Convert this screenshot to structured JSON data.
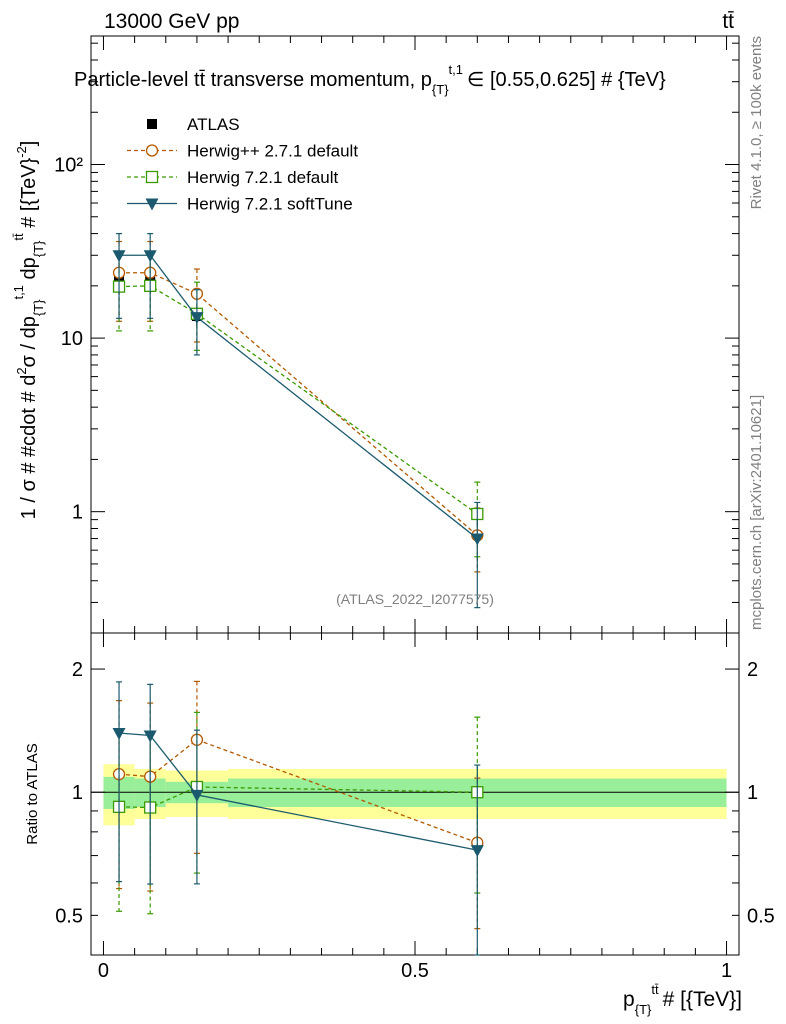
{
  "header": {
    "energy_label": "13000 GeV pp",
    "process_label": "tt̄"
  },
  "chart_data": {
    "type": "line",
    "title": "Particle-level tt̄ transverse momentum, p_{T}^{t,1} ∈ [0.55,0.625] # {TeV}",
    "title_main": "Particle-level tt̄ transverse momentum, p",
    "title_sub": "{T}",
    "title_sup": "t,1",
    "title_tail": "∈ [0.55,0.625] # {TeV}",
    "xlabel": "p_{T}^{tt̄} # [{TeV}]",
    "xlabel_main": "p",
    "xlabel_sub": "{T}",
    "xlabel_sup": "tt̄",
    "xlabel_tail": "# [{TeV}]",
    "ylabel": "1 / σ # #cdot # d²σ / dp_{T}^{t,1} dp_{T}^{tt̄} # [{TeV}⁻²]",
    "ylabel_main": "1 / σ # #cdot # d",
    "ylabel_sup1": "2",
    "ylabel_mid": "σ / dp",
    "ylabel_sub1": "{T}",
    "ylabel_sup2": "t,1",
    "ylabel_mid2": " dp",
    "ylabel_sub2": "{T}",
    "ylabel_sup3": "tt̄",
    "ylabel_tail": " # [{TeV}",
    "ylabel_sup4": "-2",
    "ylabel_end": "]",
    "ratio_ylabel": "Ratio to ATLAS",
    "analysis_id": "(ATLAS_2022_I2077575)",
    "watermark_rivet": "Rivet 4.1.0, ≥ 100k events",
    "watermark_site": "mcplots.cern.ch [arXiv:2401.10621]",
    "xlim": [
      -0.02,
      1.02
    ],
    "ylim": [
      0.2,
      550
    ],
    "ylog": true,
    "ratio_ylim": [
      0.4,
      2.45
    ],
    "ratio_ylog": true,
    "x_ticks": [
      {
        "value": 0,
        "label": "0"
      },
      {
        "value": 0.5,
        "label": "0.5"
      },
      {
        "value": 1,
        "label": "1"
      }
    ],
    "y_ticks": [
      {
        "value": 1,
        "label": "1"
      },
      {
        "value": 10,
        "label": "10"
      },
      {
        "value": 100,
        "label": "10²"
      }
    ],
    "ratio_ticks": [
      {
        "value": 0.5,
        "label": "0.5"
      },
      {
        "value": 1,
        "label": "1"
      },
      {
        "value": 2,
        "label": "2"
      }
    ],
    "bin_edges": [
      0,
      0.05,
      0.1,
      0.2,
      1.0
    ],
    "x": [
      0.025,
      0.075,
      0.15,
      0.6
    ],
    "data": {
      "name": "ATLAS",
      "values": [
        21.5,
        21.8,
        13.4,
        0.97
      ],
      "stat_rel": [
        0.09,
        0.08,
        0.06,
        0.08
      ],
      "total_rel": [
        0.17,
        0.14,
        0.13,
        0.14
      ],
      "color": "#000000"
    },
    "series": [
      {
        "name": "Herwig++ 2.7.1 default",
        "values": [
          23.8,
          23.8,
          18.0,
          0.73
        ],
        "err_lo": [
          12.5,
          12.5,
          9.5,
          0.45
        ],
        "err_hi": [
          36.0,
          36.0,
          25.0,
          1.05
        ],
        "color": "#b35900",
        "dash": "4,3",
        "marker": "circle"
      },
      {
        "name": "Herwig 7.2.1 default",
        "values": [
          19.8,
          20.0,
          13.8,
          0.97
        ],
        "err_lo": [
          11.0,
          11.0,
          8.5,
          0.55
        ],
        "err_hi": [
          30.0,
          30.0,
          21.0,
          1.48
        ],
        "color": "#3a9a00",
        "dash": "4,3",
        "marker": "square"
      },
      {
        "name": "Herwig 7.2.1 softTune",
        "values": [
          30.0,
          30.0,
          13.2,
          0.7
        ],
        "err_lo": [
          13.0,
          13.0,
          8.0,
          0.28
        ],
        "err_hi": [
          40.0,
          40.0,
          19.0,
          1.13
        ],
        "color": "#1b5a6e",
        "dash": "",
        "marker": "triangle-down"
      }
    ],
    "legend_entries": [
      "ATLAS",
      "Herwig++ 2.7.1 default",
      "Herwig 7.2.1 default",
      "Herwig 7.2.1 softTune"
    ],
    "legend_position": "top-left",
    "band_colors": {
      "stat": "#99ee99",
      "total": "#ffff99"
    }
  }
}
